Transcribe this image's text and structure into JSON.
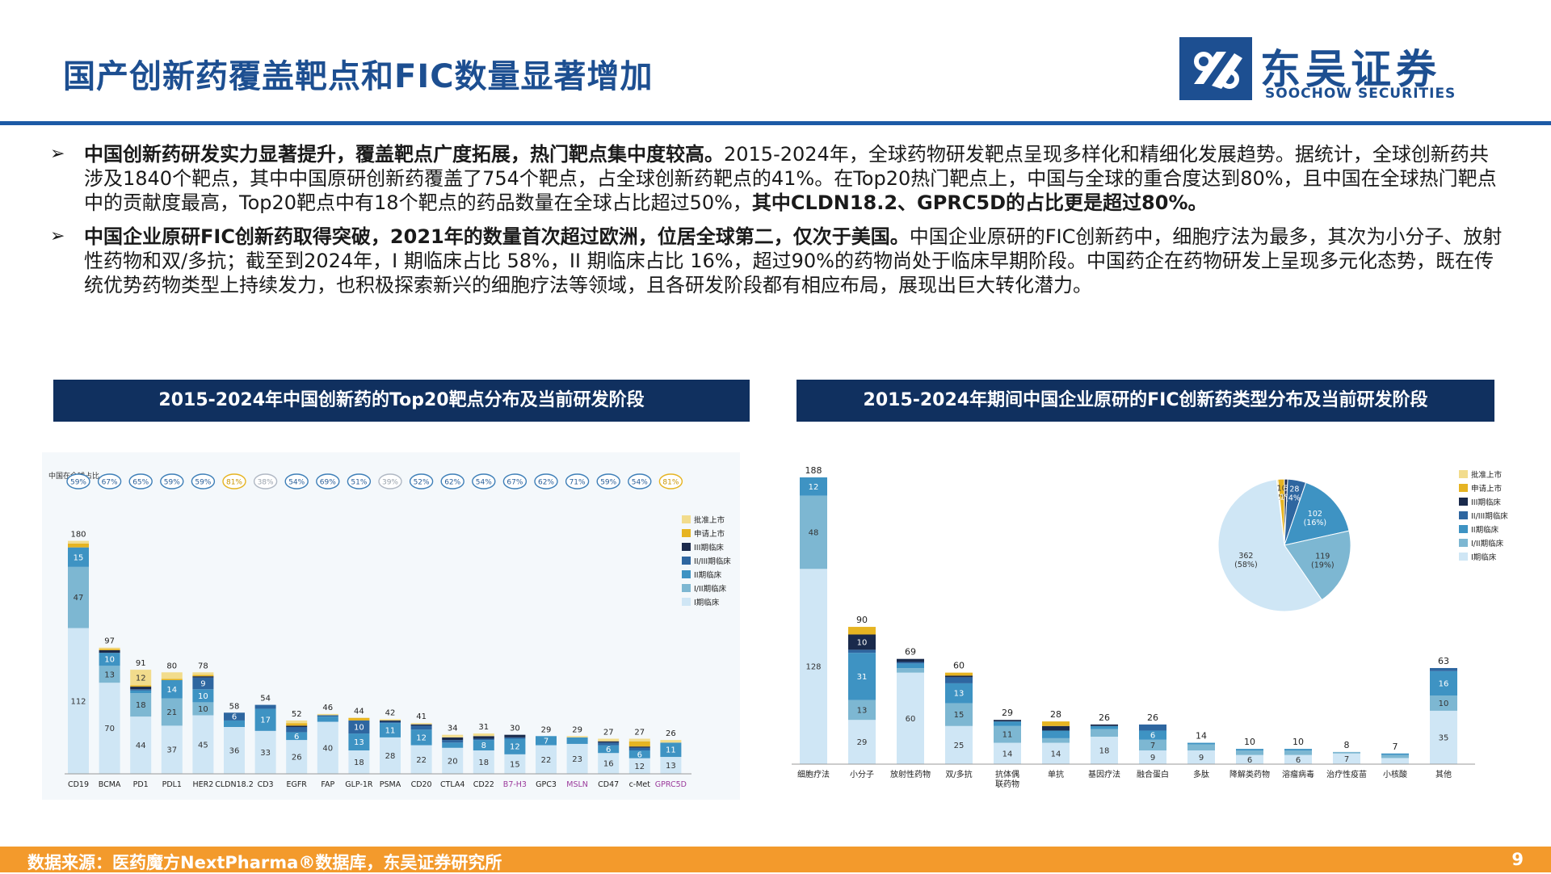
{
  "header": {
    "title": "国产创新药覆盖靶点和FIC数量显著增加",
    "logo_cn": "东吴证券",
    "logo_en": "SOOCHOW SECURITIES"
  },
  "bullets": [
    {
      "bold": "中国创新药研发实力显著提升，覆盖靶点广度拓展，热门靶点集中度较高。",
      "text": "2015-2024年，全球药物研发靶点呈现多样化和精细化发展趋势。据统计，全球创新药共涉及1840个靶点，其中中国原研创新药覆盖了754个靶点，占全球创新药靶点的41%。在Top20热门靶点上，中国与全球的重合度达到80%，且中国在全球热门靶点中的贡献度最高，Top20靶点中有18个靶点的药品数量在全球占比超过50%，",
      "bold_end": "其中CLDN18.2、GPRC5D的占比更是超过80%。"
    },
    {
      "bold": "中国企业原研FIC创新药取得突破，2021年的数量首次超过欧洲，位居全球第二，仅次于美国。",
      "text": "中国企业原研的FIC创新药中，细胞疗法为最多，其次为小分子、放射性药物和双/多抗；截至到2024年，I 期临床占比 58%，II 期临床占比 16%，超过90%的药物尚处于临床早期阶段。中国药企在药物研发上呈现多元化态势，既在传统优势药物类型上持续发力，也积极探索新兴的细胞疗法等领域，且各研发阶段都有相应布局，展现出巨大转化潜力。",
      "bold_end": ""
    }
  ],
  "chart_data": [
    {
      "type": "bar",
      "title": "2015-2024年中国创新药的Top20靶点分布及当前研发阶段",
      "share_label": "中国在全球占比",
      "stages": [
        "I期临床",
        "I/II期临床",
        "II期临床",
        "II/III期临床",
        "III期临床",
        "申请上市",
        "批准上市"
      ],
      "legend_order": [
        "批准上市",
        "申请上市",
        "III期临床",
        "II/III期临床",
        "II期临床",
        "I/II期临床",
        "I期临床"
      ],
      "stage_colors": [
        "#cfe6f5",
        "#7db7d2",
        "#3e93c3",
        "#2e66a0",
        "#1a2a4c",
        "#e6b422",
        "#f2dc8c"
      ],
      "categories": [
        "CD19",
        "BCMA",
        "PD1",
        "PDL1",
        "HER2",
        "CLDN18.2",
        "CD3",
        "EGFR",
        "FAP",
        "GLP-1R",
        "PSMA",
        "CD20",
        "CTLA4",
        "CD22",
        "B7-H3",
        "GPC3",
        "MSLN",
        "CD47",
        "c-Met",
        "GPRC5D"
      ],
      "highlight_categories": [
        "B7-H3",
        "MSLN",
        "GPRC5D"
      ],
      "totals": [
        180,
        97,
        91,
        80,
        78,
        58,
        54,
        52,
        46,
        44,
        42,
        41,
        34,
        31,
        30,
        29,
        29,
        27,
        27,
        26
      ],
      "shares": [
        "59%",
        "67%",
        "65%",
        "59%",
        "59%",
        "81%",
        "38%",
        "54%",
        "69%",
        "51%",
        "39%",
        "52%",
        "62%",
        "54%",
        "67%",
        "62%",
        "71%",
        "59%",
        "54%",
        "81%"
      ],
      "share_flags": [
        "blue",
        "blue",
        "blue",
        "blue",
        "blue",
        "gold",
        "grey",
        "blue",
        "blue",
        "blue",
        "grey",
        "blue",
        "blue",
        "blue",
        "blue",
        "blue",
        "blue",
        "blue",
        "blue",
        "gold"
      ],
      "series": [
        {
          "name": "I期临床",
          "values": [
            112,
            70,
            44,
            37,
            45,
            36,
            33,
            26,
            40,
            18,
            28,
            22,
            20,
            18,
            15,
            22,
            23,
            16,
            12,
            13
          ]
        },
        {
          "name": "I/II期临床",
          "values": [
            47,
            13,
            18,
            21,
            10,
            0,
            0,
            0,
            0,
            0,
            0,
            0,
            0,
            0,
            0,
            0,
            0,
            0,
            0,
            0
          ]
        },
        {
          "name": "II期临床",
          "values": [
            15,
            10,
            2,
            14,
            10,
            5,
            17,
            6,
            4,
            13,
            11,
            12,
            4,
            8,
            12,
            7,
            5,
            6,
            6,
            11
          ]
        },
        {
          "name": "II/III期临床",
          "values": [
            0,
            0,
            1,
            0,
            9,
            6,
            3,
            4,
            1,
            10,
            1,
            3,
            2,
            1,
            1,
            0,
            0,
            2,
            2,
            0
          ]
        },
        {
          "name": "III期临床",
          "values": [
            0,
            2,
            2,
            0,
            1,
            0,
            0,
            1,
            0,
            0,
            1,
            1,
            2,
            2,
            2,
            0,
            0,
            1,
            1,
            0
          ]
        },
        {
          "name": "申请上市",
          "values": [
            3,
            1,
            1,
            1,
            1,
            0,
            0,
            2,
            0,
            2,
            0,
            0,
            0,
            0,
            0,
            0,
            0,
            0,
            4,
            0
          ]
        },
        {
          "name": "批准上市",
          "values": [
            2,
            1,
            12,
            5,
            2,
            0,
            0,
            2,
            1,
            0,
            1,
            1,
            2,
            2,
            0,
            0,
            1,
            2,
            2,
            2
          ]
        }
      ]
    },
    {
      "type": "bar",
      "title": "2015-2024年期间中国企业原研的FIC创新药类型分布及当前研发阶段",
      "categories": [
        "细胞疗法",
        "小分子",
        "放射性药物",
        "双/多抗",
        "抗体偶联药物",
        "单抗",
        "基因疗法",
        "融合蛋白",
        "多肽",
        "降解类药物",
        "溶瘤病毒",
        "治疗性疫苗",
        "小核酸",
        "其他"
      ],
      "totals": [
        188,
        90,
        69,
        60,
        29,
        28,
        26,
        26,
        14,
        10,
        10,
        8,
        7,
        63
      ],
      "series": [
        {
          "name": "I期临床",
          "values": [
            128,
            29,
            60,
            25,
            14,
            14,
            18,
            9,
            9,
            6,
            6,
            7,
            4,
            35
          ]
        },
        {
          "name": "I/II期临床",
          "values": [
            48,
            13,
            3,
            15,
            11,
            3,
            5,
            7,
            4,
            3,
            3,
            1,
            2,
            10
          ]
        },
        {
          "name": "II期临床",
          "values": [
            12,
            31,
            3,
            13,
            3,
            5,
            2,
            6,
            1,
            1,
            1,
            0,
            1,
            16
          ]
        },
        {
          "name": "II/III期临床",
          "values": [
            0,
            2,
            1,
            4,
            0,
            0,
            0,
            4,
            0,
            0,
            0,
            0,
            0,
            2
          ]
        },
        {
          "name": "III期临床",
          "values": [
            0,
            10,
            2,
            1,
            1,
            3,
            1,
            0,
            0,
            0,
            0,
            0,
            0,
            0
          ]
        },
        {
          "name": "申请上市",
          "values": [
            0,
            5,
            0,
            2,
            0,
            3,
            0,
            0,
            0,
            0,
            0,
            0,
            0,
            0
          ]
        },
        {
          "name": "批准上市",
          "values": [
            0,
            0,
            0,
            0,
            0,
            0,
            0,
            0,
            0,
            0,
            0,
            0,
            0,
            0
          ]
        }
      ],
      "pie": {
        "slices": [
          {
            "name": "批准上市",
            "value": 2,
            "label": "2",
            "pct": "(0%)"
          },
          {
            "name": "申请上市",
            "value": 10,
            "label": "10",
            "pct": "(2%)"
          },
          {
            "name": "III期临床",
            "value": 5,
            "label": "5",
            "pct": "(1%)"
          },
          {
            "name": "II/III期临床",
            "value": 28,
            "label": "28",
            "pct": "(4%)"
          },
          {
            "name": "II期临床",
            "value": 102,
            "label": "102",
            "pct": "(16%)"
          },
          {
            "name": "I/II期临床",
            "value": 119,
            "label": "119",
            "pct": "(19%)"
          },
          {
            "name": "I期临床",
            "value": 362,
            "label": "362",
            "pct": "(58%)"
          }
        ],
        "legend": [
          "批准上市",
          "申请上市",
          "III期临床",
          "II/III期临床",
          "II期临床",
          "I/II期临床",
          "I期临床"
        ]
      }
    }
  ],
  "footer": {
    "source": "数据来源：医药魔方NextPharma®数据库，东吴证券研究所",
    "page": "9"
  },
  "colors": {
    "title_blue": "#1d4f91",
    "banner": "#10305f",
    "footer": "#f39a2c"
  }
}
